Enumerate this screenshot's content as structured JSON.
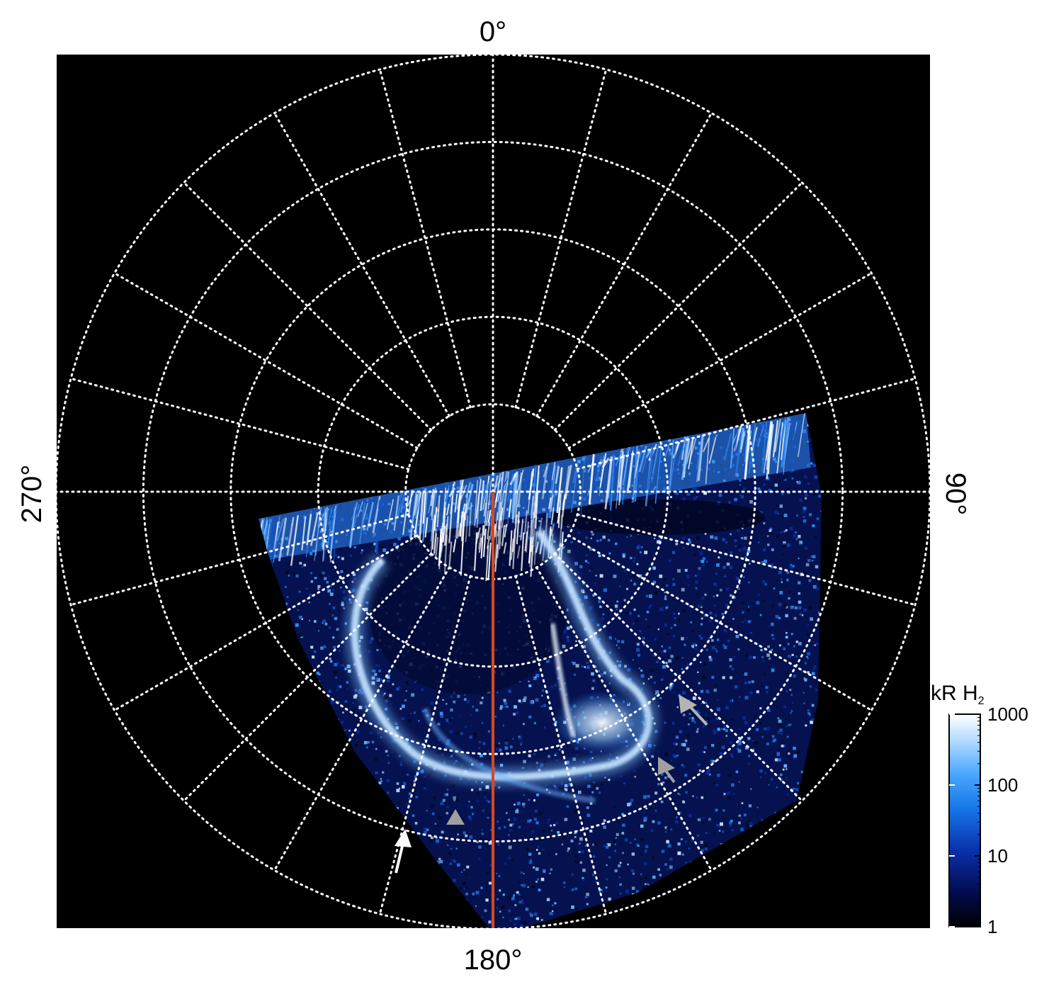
{
  "angle_labels": {
    "top": "0°",
    "right": "90°",
    "bottom": "180°",
    "left": "270°"
  },
  "colorbar": {
    "title": "kR H",
    "title_subscript": "2",
    "scale": "log",
    "range": [
      1,
      1000
    ],
    "ticks": [
      "1000",
      "100",
      "10",
      "1"
    ],
    "colors": [
      "#000000",
      "#020a4a",
      "#0a2ea8",
      "#1574e6",
      "#4aa8ff",
      "#b6dcff",
      "#ffffff"
    ]
  },
  "grid": {
    "color": "#ffffff",
    "style": "dotted",
    "meridians_deg_step": 15,
    "rings": 5
  },
  "colors": {
    "background": "#000000",
    "meridian_line": "#d9481e",
    "aurora_bright": "#ffffff",
    "aurora_mid": "#3d9bff",
    "aurora_dim": "#0a2ea8",
    "arrow_white": "#ffffff",
    "arrow_gray": "#a0a0a0"
  },
  "annotations": [
    {
      "name": "white-arrow",
      "color": "white"
    },
    {
      "name": "gray-arrow-left",
      "color": "gray"
    },
    {
      "name": "gray-arrow-mid",
      "color": "gray"
    },
    {
      "name": "gray-arrow-right",
      "color": "gray"
    }
  ]
}
